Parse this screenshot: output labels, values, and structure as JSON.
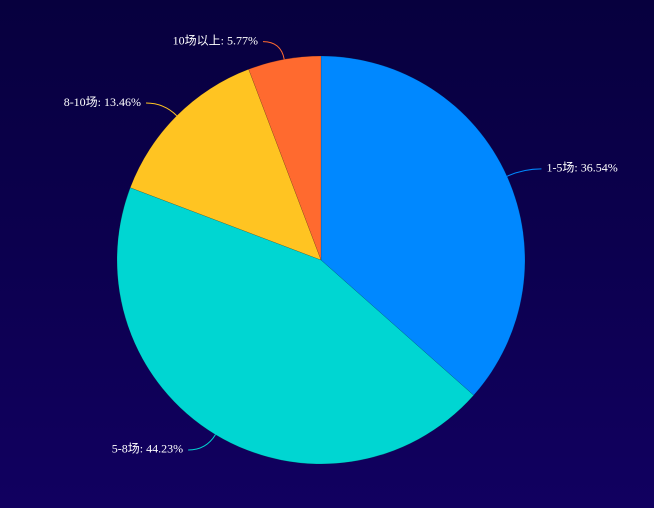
{
  "chart_data": {
    "type": "pie",
    "values": [
      36.54,
      44.23,
      13.46,
      5.77
    ],
    "value_labels": [
      "1-5场: 36.54%",
      "5-8场: 44.23%",
      "8-10场: 13.46%",
      "10场以上: 5.77%"
    ],
    "colors": [
      "#0088ff",
      "#00d6d2",
      "#ffc422",
      "#ff6a2f"
    ],
    "start_angle": 0,
    "clockwise": true
  }
}
